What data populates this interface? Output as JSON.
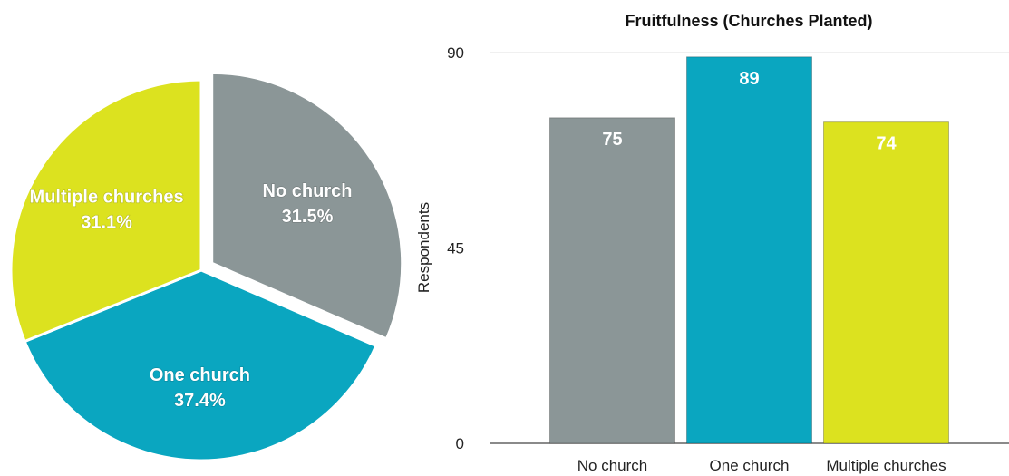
{
  "chart_data": [
    {
      "type": "pie",
      "categories": [
        "No church",
        "One church",
        "Multiple churches"
      ],
      "values": [
        31.5,
        37.4,
        31.1
      ],
      "value_labels": [
        "31.5%",
        "37.4%",
        "31.1%"
      ],
      "colors": [
        "#8b9697",
        "#0aa6c0",
        "#dce21f"
      ],
      "exploded": "No church"
    },
    {
      "type": "bar",
      "title": "Fruitfulness (Churches Planted)",
      "categories": [
        "No church",
        "One church",
        "Multiple churches"
      ],
      "values": [
        75,
        89,
        74
      ],
      "value_labels": [
        "75",
        "89",
        "74"
      ],
      "colors": [
        "#8b9697",
        "#0aa6c0",
        "#dce21f"
      ],
      "xlabel": "",
      "ylabel": "Respondents",
      "ylim": [
        0,
        90
      ],
      "yticks": [
        0,
        45,
        90
      ],
      "ytick_labels": [
        "0",
        "45",
        "90"
      ],
      "grid": true,
      "legend": "none"
    }
  ]
}
